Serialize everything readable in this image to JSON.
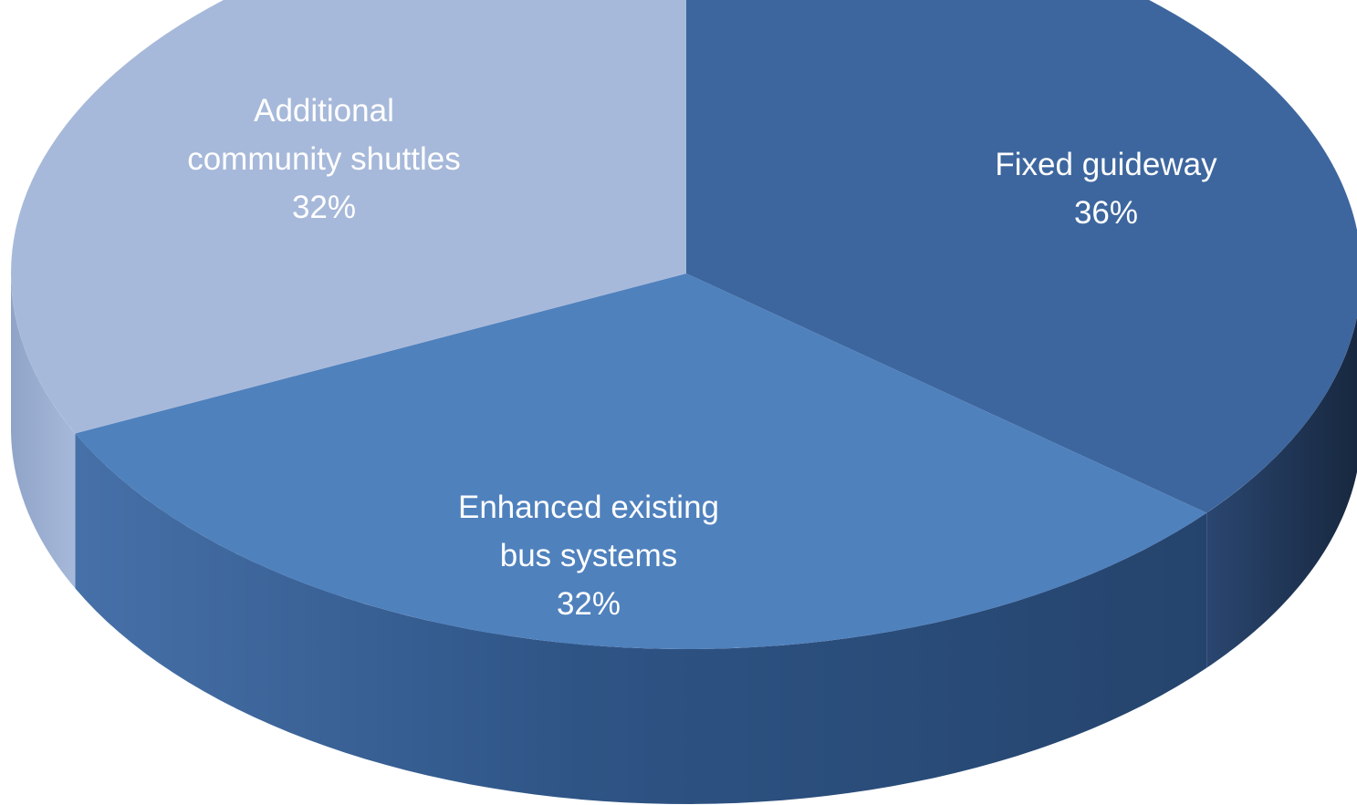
{
  "chart_data": {
    "type": "pie",
    "style": "3d",
    "title": "",
    "slices": [
      {
        "name": "Fixed guideway",
        "value": 36,
        "label_lines": [
          "Fixed guideway",
          "36%"
        ],
        "color": "#3D669E"
      },
      {
        "name": "Enhanced existing bus systems",
        "value": 32,
        "label_lines": [
          "Enhanced existing",
          "bus systems",
          "32%"
        ],
        "color": "#4F81BD"
      },
      {
        "name": "Additional community shuttles",
        "value": 32,
        "label_lines": [
          "Additional",
          "community shuttles",
          "32%"
        ],
        "color": "#A7B9DA"
      }
    ]
  }
}
